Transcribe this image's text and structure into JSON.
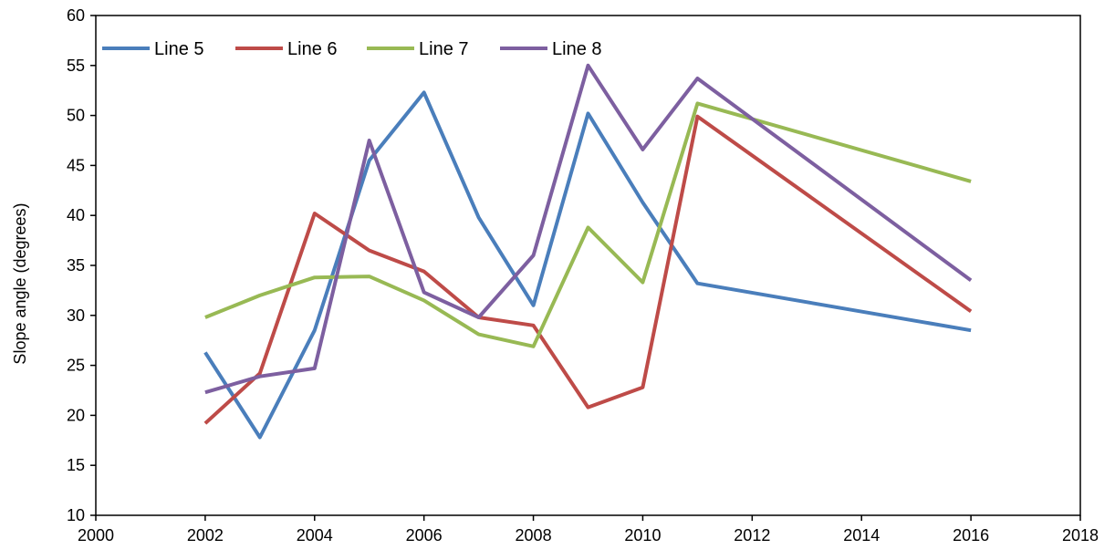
{
  "chart_data": {
    "type": "line",
    "title": "",
    "xlabel": "",
    "ylabel": "Slope angle (degrees)",
    "xlim": [
      2000,
      2018
    ],
    "ylim": [
      10,
      60
    ],
    "xticks": [
      2000,
      2002,
      2004,
      2006,
      2008,
      2010,
      2012,
      2014,
      2016,
      2018
    ],
    "yticks": [
      10,
      15,
      20,
      25,
      30,
      35,
      40,
      45,
      50,
      55,
      60
    ],
    "grid": false,
    "legend_position": "top-left",
    "series": [
      {
        "name": "Line 5",
        "color": "#4a7ebb",
        "points": [
          [
            2002,
            26.3
          ],
          [
            2003,
            17.8
          ],
          [
            2004,
            28.5
          ],
          [
            2005,
            45.5
          ],
          [
            2006,
            52.3
          ],
          [
            2007,
            39.8
          ],
          [
            2008,
            31.0
          ],
          [
            2009,
            50.2
          ],
          [
            2010,
            41.3
          ],
          [
            2011,
            33.2
          ],
          [
            2016,
            28.5
          ]
        ]
      },
      {
        "name": "Line 6",
        "color": "#be4b48",
        "points": [
          [
            2002,
            19.2
          ],
          [
            2003,
            24.2
          ],
          [
            2004,
            40.2
          ],
          [
            2005,
            36.5
          ],
          [
            2006,
            34.4
          ],
          [
            2007,
            29.8
          ],
          [
            2008,
            29.0
          ],
          [
            2009,
            20.8
          ],
          [
            2010,
            22.8
          ],
          [
            2011,
            49.9
          ],
          [
            2016,
            30.4
          ]
        ]
      },
      {
        "name": "Line 7",
        "color": "#98b954",
        "points": [
          [
            2002,
            29.8
          ],
          [
            2003,
            32.0
          ],
          [
            2004,
            33.8
          ],
          [
            2005,
            33.9
          ],
          [
            2006,
            31.5
          ],
          [
            2007,
            28.1
          ],
          [
            2008,
            26.9
          ],
          [
            2009,
            38.8
          ],
          [
            2010,
            33.3
          ],
          [
            2011,
            51.2
          ],
          [
            2016,
            43.4
          ]
        ]
      },
      {
        "name": "Line 8",
        "color": "#7d5fa0",
        "points": [
          [
            2002,
            22.3
          ],
          [
            2003,
            23.9
          ],
          [
            2004,
            24.7
          ],
          [
            2005,
            47.5
          ],
          [
            2006,
            32.3
          ],
          [
            2007,
            29.8
          ],
          [
            2008,
            36.0
          ],
          [
            2009,
            55.0
          ],
          [
            2010,
            46.6
          ],
          [
            2011,
            53.7
          ],
          [
            2016,
            33.5
          ]
        ]
      }
    ]
  }
}
